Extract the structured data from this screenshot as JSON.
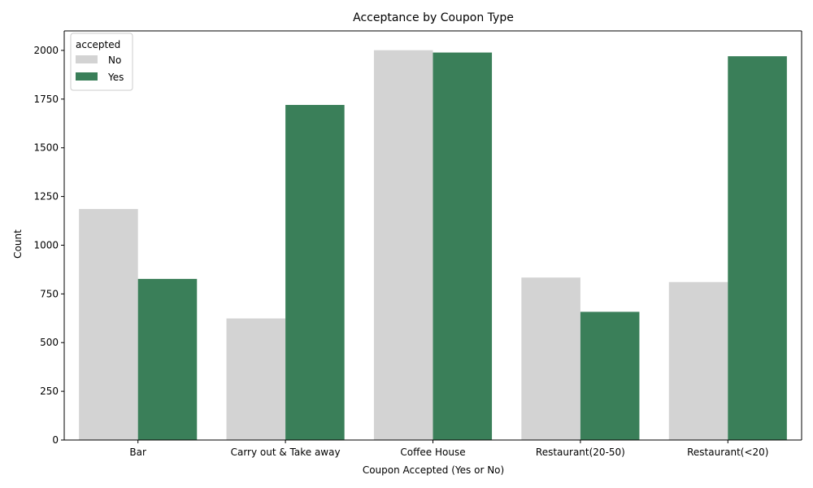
{
  "chart_data": {
    "type": "bar",
    "title": "Acceptance by Coupon Type",
    "xlabel": "Coupon Accepted (Yes or No)",
    "ylabel": "Count",
    "categories": [
      "Bar",
      "Carry out & Take away",
      "Coffee House",
      "Restaurant(20-50)",
      "Restaurant(<20)"
    ],
    "series": [
      {
        "name": "No",
        "color": "#d3d3d3",
        "values": [
          1186,
          624,
          2001,
          834,
          811
        ]
      },
      {
        "name": "Yes",
        "color": "#3a7f59",
        "values": [
          827,
          1720,
          1989,
          658,
          1970
        ]
      }
    ],
    "ylim": [
      0,
      2100
    ],
    "yticks": [
      0,
      250,
      500,
      750,
      1000,
      1250,
      1500,
      1750,
      2000
    ],
    "grid": false,
    "legend": {
      "title": "accepted",
      "position": "top-left"
    }
  }
}
